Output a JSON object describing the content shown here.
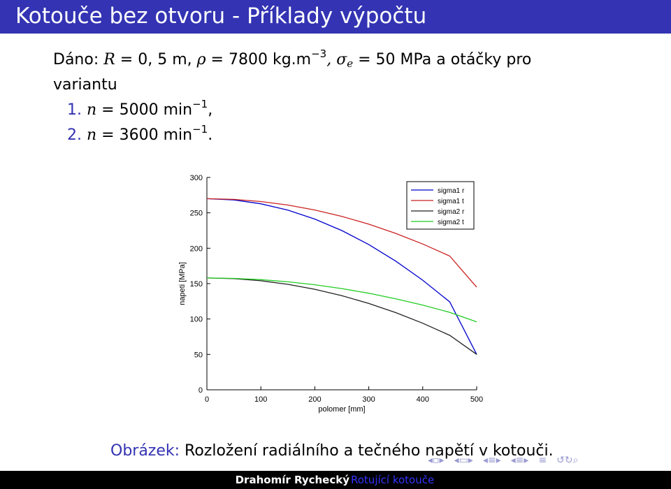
{
  "slide": {
    "title": "Kotouče bez otvoru - Příklady výpočtu"
  },
  "given": {
    "prefix": "Dáno: ",
    "R_var": "R",
    "R_val": " = 0, 5 m, ",
    "rho_var": "ρ",
    "rho_val": " = 7800 kg.m",
    "rho_exp": "−3",
    "sigma_var": ", σ",
    "sigma_sub": "e",
    "sigma_val": " = 50 MPa a otáčky pro",
    "line2": "variantu",
    "items": [
      {
        "num": "1.",
        "var": "n",
        "val": " = 5000 min",
        "exp": "−1",
        "end": ","
      },
      {
        "num": "2.",
        "var": "n",
        "val": " = 3600 min",
        "exp": "−1",
        "end": "."
      }
    ]
  },
  "chart_data": {
    "type": "line",
    "xlabel": "polomer [mm]",
    "ylabel": "napeti [MPa]",
    "xlim": [
      0,
      500
    ],
    "ylim": [
      0,
      300
    ],
    "x_ticks": [
      0,
      100,
      200,
      300,
      400,
      500
    ],
    "y_ticks": [
      0,
      50,
      100,
      150,
      200,
      250,
      300
    ],
    "legend_position": "top-right",
    "grid": false,
    "x": [
      0,
      50,
      100,
      150,
      200,
      250,
      300,
      350,
      400,
      450,
      500
    ],
    "series": [
      {
        "name": "sigma1 r",
        "color": "#0000cc",
        "values": [
          270,
          268.2,
          262.8,
          253.8,
          241.2,
          225,
          205.2,
          181.8,
          154.8,
          124.2,
          50
        ]
      },
      {
        "name": "sigma1 t",
        "color": "#cc2222",
        "values": [
          270,
          269,
          266,
          261,
          254,
          245,
          234,
          221,
          206,
          189,
          145
        ]
      },
      {
        "name": "sigma2 r",
        "color": "#222222",
        "values": [
          158,
          157,
          154,
          149,
          142,
          133,
          122,
          109,
          94,
          77,
          50
        ]
      },
      {
        "name": "sigma2 t",
        "color": "#22cc22",
        "values": [
          158,
          157.4,
          155.6,
          152.6,
          148.4,
          143,
          136.4,
          128.6,
          119.6,
          109.4,
          96
        ]
      }
    ]
  },
  "caption": {
    "label": "Obrázek:",
    "text": " Rozložení radiálního a tečného napětí v kotouči."
  },
  "footer": {
    "author": "Drahomír Rychecký",
    "topic": "Rotující kotouče"
  },
  "nav_icons": [
    "nav-frame-prev-icon",
    "nav-frame-next-icon",
    "nav-section-icon",
    "nav-subsection-icon",
    "nav-doc-icon",
    "nav-search-icon"
  ]
}
